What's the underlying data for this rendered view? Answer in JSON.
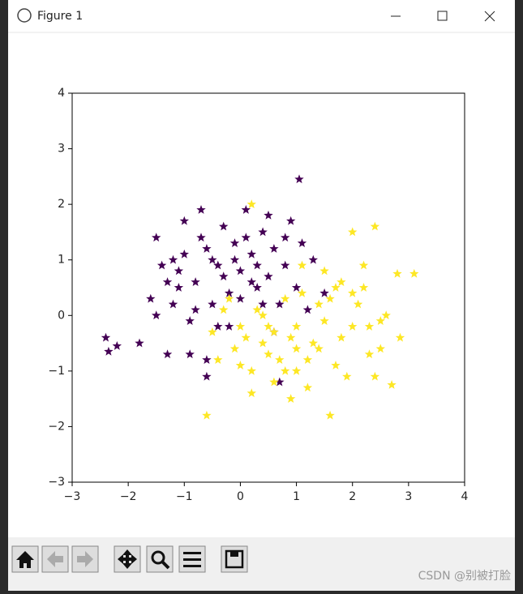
{
  "window": {
    "title": "Figure 1"
  },
  "watermark": "CSDN @别被打脸",
  "chart_data": {
    "type": "scatter",
    "marker": "star",
    "xlim": [
      -3,
      4
    ],
    "ylim": [
      -3,
      4
    ],
    "xticks": [
      {
        "value": -3,
        "label": "−3"
      },
      {
        "value": -2,
        "label": "−2"
      },
      {
        "value": -1,
        "label": "−1"
      },
      0,
      1,
      2,
      3,
      4
    ],
    "yticks": [
      {
        "value": -3,
        "label": "−3"
      },
      {
        "value": -2,
        "label": "−2"
      },
      {
        "value": -1,
        "label": "−1"
      },
      0,
      1,
      2,
      3,
      4
    ],
    "grid": false,
    "series": [
      {
        "color": "#440154",
        "x": [
          -2.4,
          -2.35,
          -2.2,
          -1.8,
          -1.6,
          -1.5,
          -1.4,
          -1.3,
          -1.2,
          -1.1,
          -1.0,
          -0.9,
          -0.8,
          -0.7,
          -0.6,
          -0.5,
          -0.4,
          -0.3,
          -0.2,
          -0.1,
          0.0,
          0.1,
          0.2,
          0.3,
          0.4,
          0.5,
          0.6,
          0.7,
          0.8,
          0.9,
          1.0,
          1.1,
          1.2,
          1.05,
          0.8,
          -1.5,
          -1.2,
          -0.9,
          -0.6,
          -0.3,
          0.0,
          0.3,
          0.6,
          -1.0,
          -0.7,
          -0.4,
          -0.1,
          0.2,
          0.5,
          -1.3,
          -0.8,
          -0.5,
          0.1,
          0.4,
          -0.6,
          1.3,
          1.5,
          -1.1,
          -0.2,
          0.7
        ],
        "y": [
          -0.4,
          -0.65,
          -0.55,
          -0.5,
          0.3,
          1.4,
          0.9,
          -0.7,
          1.0,
          0.5,
          1.7,
          -0.1,
          0.6,
          1.9,
          1.2,
          0.2,
          0.9,
          1.6,
          0.4,
          1.3,
          0.8,
          1.9,
          1.1,
          0.5,
          1.5,
          0.7,
          1.2,
          0.2,
          0.9,
          1.7,
          0.5,
          1.3,
          0.1,
          2.45,
          1.4,
          0.0,
          0.2,
          -0.7,
          -0.8,
          0.7,
          0.3,
          0.9,
          -0.3,
          1.1,
          1.4,
          -0.2,
          1.0,
          0.6,
          1.8,
          0.6,
          0.1,
          1.0,
          1.4,
          0.2,
          -1.1,
          1.0,
          0.4,
          0.8,
          -0.2,
          -1.2
        ]
      },
      {
        "color": "#fde725",
        "x": [
          -0.6,
          -0.5,
          -0.3,
          0.0,
          0.2,
          0.4,
          0.6,
          0.8,
          1.0,
          1.2,
          1.4,
          1.6,
          1.8,
          2.0,
          2.2,
          2.4,
          2.6,
          2.8,
          3.1,
          2.85,
          2.4,
          2.0,
          1.7,
          1.4,
          1.1,
          0.8,
          0.5,
          0.2,
          -0.1,
          -0.4,
          0.3,
          0.6,
          0.9,
          1.2,
          1.5,
          1.8,
          2.1,
          2.3,
          2.5,
          2.7,
          0.1,
          0.4,
          0.7,
          1.0,
          1.3,
          1.6,
          1.9,
          2.2,
          0.0,
          0.5,
          1.0,
          1.5,
          2.0,
          2.5,
          -0.2,
          1.1,
          1.7,
          2.3,
          0.9,
          0.2
        ],
        "y": [
          -1.8,
          -0.3,
          0.1,
          -0.9,
          2.0,
          -0.5,
          -1.2,
          0.3,
          -0.6,
          -1.3,
          0.2,
          -1.8,
          0.6,
          -0.2,
          0.9,
          1.6,
          0.0,
          0.75,
          0.75,
          -0.4,
          -1.1,
          1.5,
          -0.9,
          -0.6,
          0.4,
          -1.0,
          -0.2,
          -1.4,
          -0.6,
          -0.8,
          0.1,
          -0.3,
          -1.5,
          -0.8,
          0.8,
          -0.4,
          0.2,
          -0.7,
          -0.1,
          -1.25,
          -0.4,
          0.0,
          -0.8,
          -0.2,
          -0.5,
          0.3,
          -1.1,
          0.5,
          -0.2,
          -0.7,
          -1.0,
          -0.1,
          0.4,
          -0.6,
          0.3,
          0.9,
          0.5,
          -0.2,
          -0.4,
          -1.0
        ]
      }
    ]
  }
}
